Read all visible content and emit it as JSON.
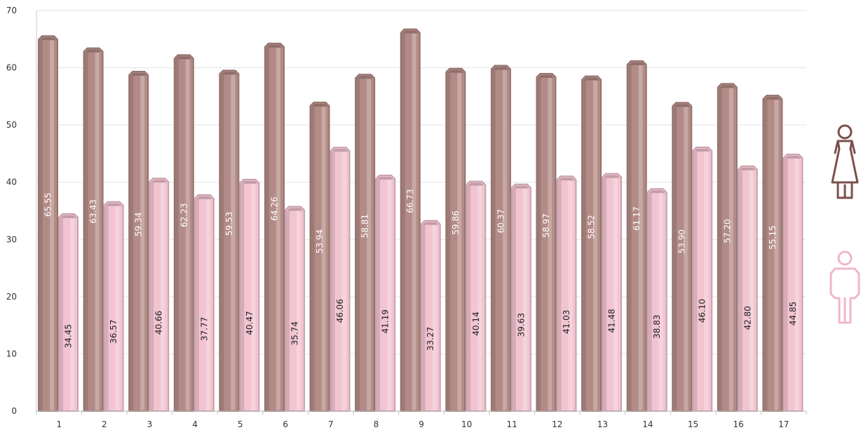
{
  "chart_data": {
    "type": "bar",
    "categories": [
      "1",
      "2",
      "3",
      "4",
      "5",
      "6",
      "7",
      "8",
      "9",
      "10",
      "11",
      "12",
      "13",
      "14",
      "15",
      "16",
      "17"
    ],
    "series": [
      {
        "name": "",
        "icon": "female-icon",
        "color": "#b38b86",
        "label_color": "#ffffff",
        "values": [
          65.55,
          63.43,
          59.34,
          62.23,
          59.53,
          64.26,
          53.94,
          58.81,
          66.73,
          59.86,
          60.37,
          58.97,
          58.52,
          61.17,
          53.9,
          57.2,
          55.15
        ],
        "labels": [
          "65.55",
          "63.43",
          "59.34",
          "62.23",
          "59.53",
          "64.26",
          "53.94",
          "58.81",
          "66.73",
          "59.86",
          "60.37",
          "58.97",
          "58.52",
          "61.17",
          "53.90",
          "57.20",
          "55.15"
        ]
      },
      {
        "name": "",
        "icon": "male-icon",
        "color": "#f2c4d1",
        "label_color": "#222222",
        "values": [
          34.45,
          36.57,
          40.66,
          37.77,
          40.47,
          35.74,
          46.06,
          41.19,
          33.27,
          40.14,
          39.63,
          41.03,
          41.48,
          38.83,
          46.1,
          42.8,
          44.85
        ],
        "labels": [
          "34.45",
          "36.57",
          "40.66",
          "37.77",
          "40.47",
          "35.74",
          "46.06",
          "41.19",
          "33.27",
          "40.14",
          "39.63",
          "41.03",
          "41.48",
          "38.83",
          "46.10",
          "42.80",
          "44.85"
        ]
      }
    ],
    "yticks": [
      "0",
      "10",
      "20",
      "30",
      "40",
      "50",
      "60",
      "70"
    ],
    "ylim": [
      0,
      70
    ],
    "grid": true,
    "legend": "right (icons)",
    "title": "",
    "xlabel": "",
    "ylabel": ""
  }
}
